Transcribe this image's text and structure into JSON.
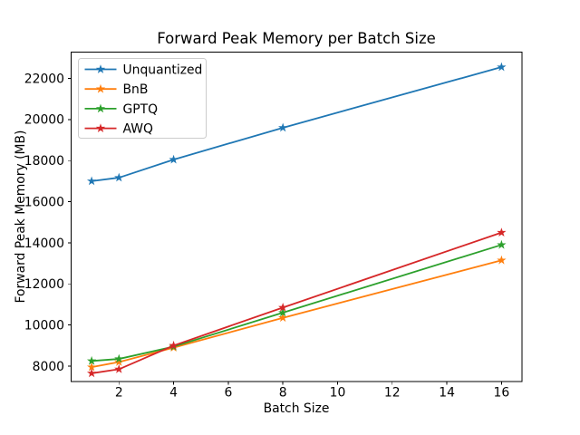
{
  "chart_data": {
    "type": "line",
    "title": "Forward Peak Memory per Batch Size",
    "xlabel": "Batch Size",
    "ylabel": "Forward Peak Memory (MB)",
    "x": [
      1,
      2,
      4,
      8,
      16
    ],
    "series": [
      {
        "name": "Unquantized",
        "color": "#1f77b4",
        "values": [
          17000,
          17170,
          18050,
          19600,
          22550
        ]
      },
      {
        "name": "BnB",
        "color": "#ff7f0e",
        "values": [
          7950,
          8200,
          8900,
          10350,
          13150
        ]
      },
      {
        "name": "GPTQ",
        "color": "#2ca02c",
        "values": [
          8250,
          8350,
          8950,
          10600,
          13900
        ]
      },
      {
        "name": "AWQ",
        "color": "#d62728",
        "values": [
          7650,
          7850,
          9000,
          10850,
          14500
        ]
      }
    ],
    "marker": "star",
    "grid": false,
    "legend_position": "upper-left",
    "xlim": [
      0.25,
      16.75
    ],
    "ylim": [
      7250,
      23280
    ],
    "xticks": [
      2,
      4,
      6,
      8,
      10,
      12,
      14,
      16
    ],
    "yticks": [
      8000,
      10000,
      12000,
      14000,
      16000,
      18000,
      20000,
      22000
    ],
    "axis_color": "#000000",
    "background_color": "#ffffff",
    "legend_border_color": "#cccccc"
  }
}
